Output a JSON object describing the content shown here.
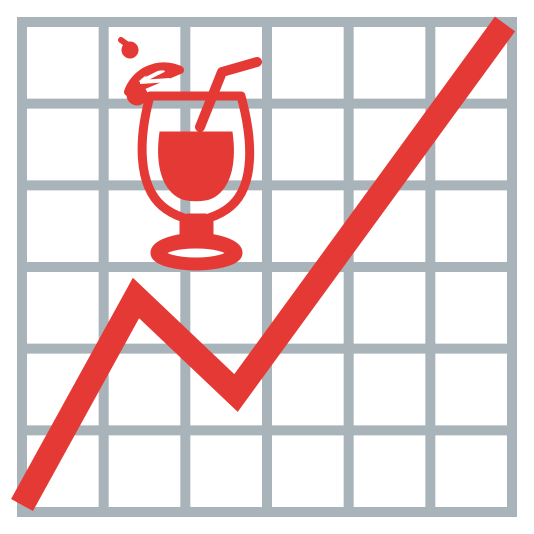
{
  "icon": {
    "name": "cocktail-chart-icon",
    "grid_color": "#A9B4BA",
    "accent_color": "#E53935",
    "background_color": "#FFFFFF"
  },
  "grid": {
    "columns": 6,
    "rows": 6
  },
  "trend_line": {
    "description_only": false,
    "direction": "up",
    "shape": "rise-dip-rise"
  },
  "drink": {
    "icon": "cocktail-glass-icon",
    "garnish": [
      "cherry",
      "orange-slice",
      "straw"
    ]
  }
}
